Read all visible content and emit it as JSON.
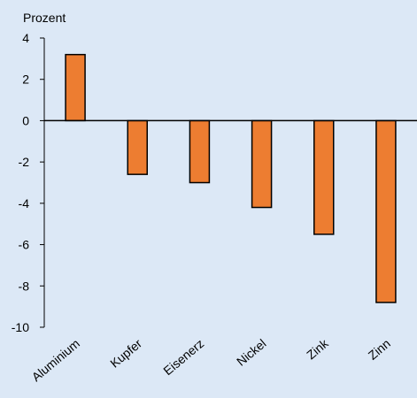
{
  "chart_data": {
    "type": "bar",
    "categories": [
      "Aluminium",
      "Kupfer",
      "Eisenerz",
      "Nickel",
      "Zink",
      "Zinn"
    ],
    "values": [
      3.2,
      -2.6,
      -3.0,
      -4.2,
      -5.5,
      -8.8
    ],
    "ylabel": "Prozent",
    "xlabel": "",
    "title": "",
    "ylim": [
      -10,
      4
    ],
    "yticks": [
      4,
      2,
      0,
      -2,
      -4,
      -6,
      -8,
      -10
    ],
    "grid": false,
    "legend": "none",
    "colors": {
      "background": "#dce8f6",
      "bar": "#ed7d31",
      "bar_outline": "#000000",
      "axis": "#000000"
    }
  }
}
